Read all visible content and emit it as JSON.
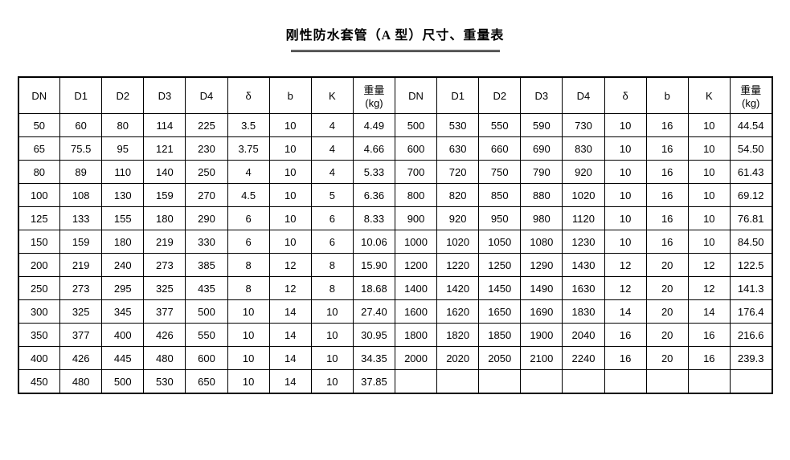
{
  "title": "刚性防水套管（A 型）尺寸、重量表",
  "table": {
    "background_color": "#ffffff",
    "border_color": "#000000",
    "font_size_title": 16,
    "font_size_cells": 13,
    "columns": [
      "DN",
      "D1",
      "D2",
      "D3",
      "D4",
      "δ",
      "b",
      "K",
      "重量(kg)"
    ],
    "left_rows": [
      [
        "50",
        "60",
        "80",
        "114",
        "225",
        "3.5",
        "10",
        "4",
        "4.49"
      ],
      [
        "65",
        "75.5",
        "95",
        "121",
        "230",
        "3.75",
        "10",
        "4",
        "4.66"
      ],
      [
        "80",
        "89",
        "110",
        "140",
        "250",
        "4",
        "10",
        "4",
        "5.33"
      ],
      [
        "100",
        "108",
        "130",
        "159",
        "270",
        "4.5",
        "10",
        "5",
        "6.36"
      ],
      [
        "125",
        "133",
        "155",
        "180",
        "290",
        "6",
        "10",
        "6",
        "8.33"
      ],
      [
        "150",
        "159",
        "180",
        "219",
        "330",
        "6",
        "10",
        "6",
        "10.06"
      ],
      [
        "200",
        "219",
        "240",
        "273",
        "385",
        "8",
        "12",
        "8",
        "15.90"
      ],
      [
        "250",
        "273",
        "295",
        "325",
        "435",
        "8",
        "12",
        "8",
        "18.68"
      ],
      [
        "300",
        "325",
        "345",
        "377",
        "500",
        "10",
        "14",
        "10",
        "27.40"
      ],
      [
        "350",
        "377",
        "400",
        "426",
        "550",
        "10",
        "14",
        "10",
        "30.95"
      ],
      [
        "400",
        "426",
        "445",
        "480",
        "600",
        "10",
        "14",
        "10",
        "34.35"
      ],
      [
        "450",
        "480",
        "500",
        "530",
        "650",
        "10",
        "14",
        "10",
        "37.85"
      ]
    ],
    "right_rows": [
      [
        "500",
        "530",
        "550",
        "590",
        "730",
        "10",
        "16",
        "10",
        "44.54"
      ],
      [
        "600",
        "630",
        "660",
        "690",
        "830",
        "10",
        "16",
        "10",
        "54.50"
      ],
      [
        "700",
        "720",
        "750",
        "790",
        "920",
        "10",
        "16",
        "10",
        "61.43"
      ],
      [
        "800",
        "820",
        "850",
        "880",
        "1020",
        "10",
        "16",
        "10",
        "69.12"
      ],
      [
        "900",
        "920",
        "950",
        "980",
        "1120",
        "10",
        "16",
        "10",
        "76.81"
      ],
      [
        "1000",
        "1020",
        "1050",
        "1080",
        "1230",
        "10",
        "16",
        "10",
        "84.50"
      ],
      [
        "1200",
        "1220",
        "1250",
        "1290",
        "1430",
        "12",
        "20",
        "12",
        "122.5"
      ],
      [
        "1400",
        "1420",
        "1450",
        "1490",
        "1630",
        "12",
        "20",
        "12",
        "141.3"
      ],
      [
        "1600",
        "1620",
        "1650",
        "1690",
        "1830",
        "14",
        "20",
        "14",
        "176.4"
      ],
      [
        "1800",
        "1820",
        "1850",
        "1900",
        "2040",
        "16",
        "20",
        "16",
        "216.6"
      ],
      [
        "2000",
        "2020",
        "2050",
        "2100",
        "2240",
        "16",
        "20",
        "16",
        "239.3"
      ],
      [
        "",
        "",
        "",
        "",
        "",
        "",
        "",
        "",
        ""
      ]
    ]
  }
}
